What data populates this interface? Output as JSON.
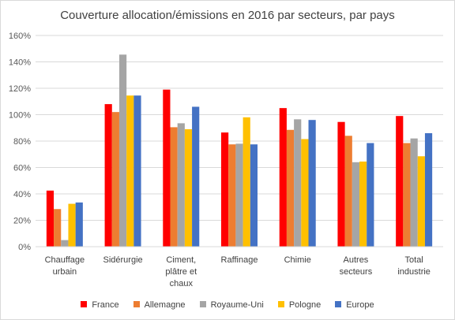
{
  "chart_data": {
    "type": "bar",
    "title": "Couverture allocation/émissions en 2016 par secteurs, par pays",
    "categories": [
      [
        "Chauffage",
        "urbain"
      ],
      [
        "Sidérurgie"
      ],
      [
        "Ciment,",
        "plâtre et",
        "chaux"
      ],
      [
        "Raffinage"
      ],
      [
        "Chimie"
      ],
      [
        "Autres",
        "secteurs"
      ],
      [
        "Total",
        "industrie"
      ]
    ],
    "series": [
      {
        "name": "France",
        "color": "#ff0000",
        "values": [
          42.5,
          108,
          119,
          86.5,
          105,
          94.5,
          99
        ]
      },
      {
        "name": "Allemagne",
        "color": "#ed7d31",
        "values": [
          28.5,
          102,
          90.5,
          77.5,
          88.5,
          84,
          78.5
        ]
      },
      {
        "name": "Royaume-Uni",
        "color": "#a5a5a5",
        "values": [
          5,
          145.5,
          93.5,
          78,
          96.5,
          64,
          82
        ]
      },
      {
        "name": "Pologne",
        "color": "#ffc000",
        "values": [
          32.5,
          114.5,
          89,
          98,
          81.5,
          64.5,
          68.5
        ]
      },
      {
        "name": "Europe",
        "color": "#4472c4",
        "values": [
          33.5,
          114.5,
          106,
          77.5,
          96,
          78.5,
          86
        ]
      }
    ],
    "ylim": [
      0,
      160
    ],
    "yticks": [
      0,
      20,
      40,
      60,
      80,
      100,
      120,
      140,
      160
    ],
    "ytick_labels": [
      "0%",
      "20%",
      "40%",
      "60%",
      "80%",
      "100%",
      "120%",
      "140%",
      "160%"
    ],
    "grid": true,
    "legend_position": "bottom"
  }
}
